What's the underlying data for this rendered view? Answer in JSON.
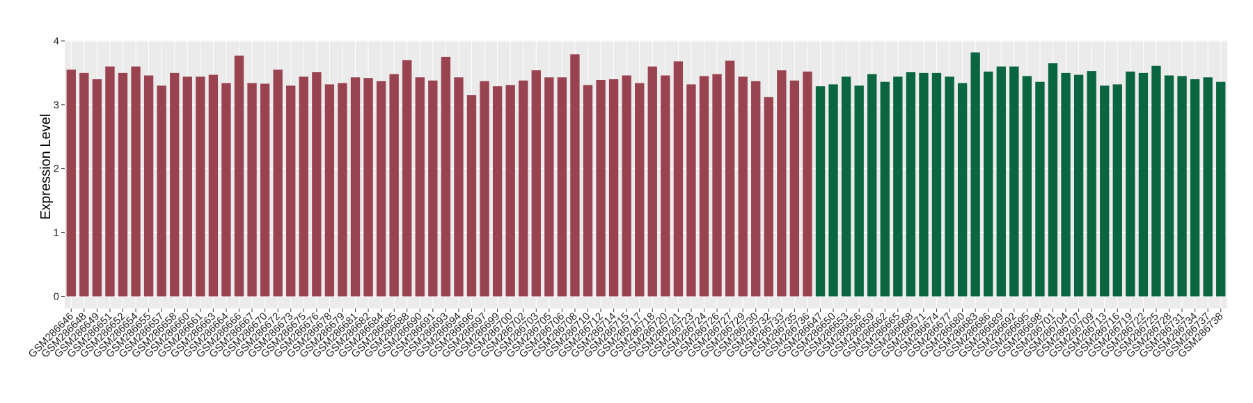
{
  "chart_data": {
    "type": "bar",
    "y_label": "Expression Level",
    "categories": [
      "GSM286646",
      "GSM286648",
      "GSM286649",
      "GSM286651",
      "GSM286652",
      "GSM286654",
      "GSM286655",
      "GSM286657",
      "GSM286658",
      "GSM286660",
      "GSM286661",
      "GSM286663",
      "GSM286664",
      "GSM286666",
      "GSM286667",
      "GSM286670",
      "GSM286672",
      "GSM286673",
      "GSM286675",
      "GSM286676",
      "GSM286678",
      "GSM286679",
      "GSM286681",
      "GSM286682",
      "GSM286684",
      "GSM286685",
      "GSM286688",
      "GSM286690",
      "GSM286691",
      "GSM286693",
      "GSM286694",
      "GSM286696",
      "GSM286697",
      "GSM286699",
      "GSM286700",
      "GSM286702",
      "GSM286703",
      "GSM286705",
      "GSM286706",
      "GSM286708",
      "GSM286710",
      "GSM286712",
      "GSM286714",
      "GSM286715",
      "GSM286717",
      "GSM286718",
      "GSM286720",
      "GSM286721",
      "GSM286723",
      "GSM286724",
      "GSM286726",
      "GSM286727",
      "GSM286729",
      "GSM286730",
      "GSM286732",
      "GSM286733",
      "GSM286735",
      "GSM286736",
      "GSM286647",
      "GSM286650",
      "GSM286653",
      "GSM286656",
      "GSM286659",
      "GSM286662",
      "GSM286665",
      "GSM286668",
      "GSM286671",
      "GSM286674",
      "GSM286677",
      "GSM286680",
      "GSM286683",
      "GSM286686",
      "GSM286689",
      "GSM286692",
      "GSM286695",
      "GSM286698",
      "GSM286701",
      "GSM286704",
      "GSM286707",
      "GSM286709",
      "GSM286713",
      "GSM286716",
      "GSM286719",
      "GSM286722",
      "GSM286725",
      "GSM286728",
      "GSM286731",
      "GSM286734",
      "GSM286737",
      "GSM286738"
    ],
    "series": [
      {
        "color": "#9a4350",
        "values": [
          3.55,
          3.5,
          3.4,
          3.6,
          3.5,
          3.6,
          3.46,
          3.3,
          3.5,
          3.44,
          3.44,
          3.47,
          3.34,
          3.77,
          3.34,
          3.33,
          3.55,
          3.3,
          3.44,
          3.51,
          3.32,
          3.34,
          3.43,
          3.42,
          3.37,
          3.48,
          3.7,
          3.43,
          3.38,
          3.75,
          3.43,
          3.15,
          3.37,
          3.29,
          3.31,
          3.38,
          3.54,
          3.43,
          3.43,
          3.79,
          3.31,
          3.39,
          3.4,
          3.46,
          3.34,
          3.6,
          3.46,
          3.68,
          3.32,
          3.45,
          3.48,
          3.69,
          3.44,
          3.37,
          3.12,
          3.54,
          3.38,
          3.52,
          null,
          null,
          null,
          null,
          null,
          null,
          null,
          null,
          null,
          null,
          null,
          null,
          null,
          null,
          null,
          null,
          null,
          null,
          null,
          null,
          null,
          null,
          null,
          null,
          null,
          null,
          null,
          null,
          null,
          null,
          null,
          null
        ]
      },
      {
        "color": "#0a6640",
        "values": [
          null,
          null,
          null,
          null,
          null,
          null,
          null,
          null,
          null,
          null,
          null,
          null,
          null,
          null,
          null,
          null,
          null,
          null,
          null,
          null,
          null,
          null,
          null,
          null,
          null,
          null,
          null,
          null,
          null,
          null,
          null,
          null,
          null,
          null,
          null,
          null,
          null,
          null,
          null,
          null,
          null,
          null,
          null,
          null,
          null,
          null,
          null,
          null,
          null,
          null,
          null,
          null,
          null,
          null,
          null,
          null,
          null,
          null,
          3.29,
          3.32,
          3.44,
          3.3,
          3.48,
          3.36,
          3.44,
          3.51,
          3.5,
          3.5,
          3.44,
          3.34,
          3.82,
          3.52,
          3.6,
          3.6,
          3.45,
          3.36,
          3.65,
          3.5,
          3.47,
          3.53,
          3.3,
          3.32,
          3.52,
          3.5,
          3.61,
          3.46,
          3.45,
          3.4,
          3.43,
          3.36
        ]
      }
    ],
    "ylim": [
      -0.19,
      4.01
    ],
    "yticks": [
      0,
      1,
      2,
      3,
      4
    ],
    "grid": true
  }
}
